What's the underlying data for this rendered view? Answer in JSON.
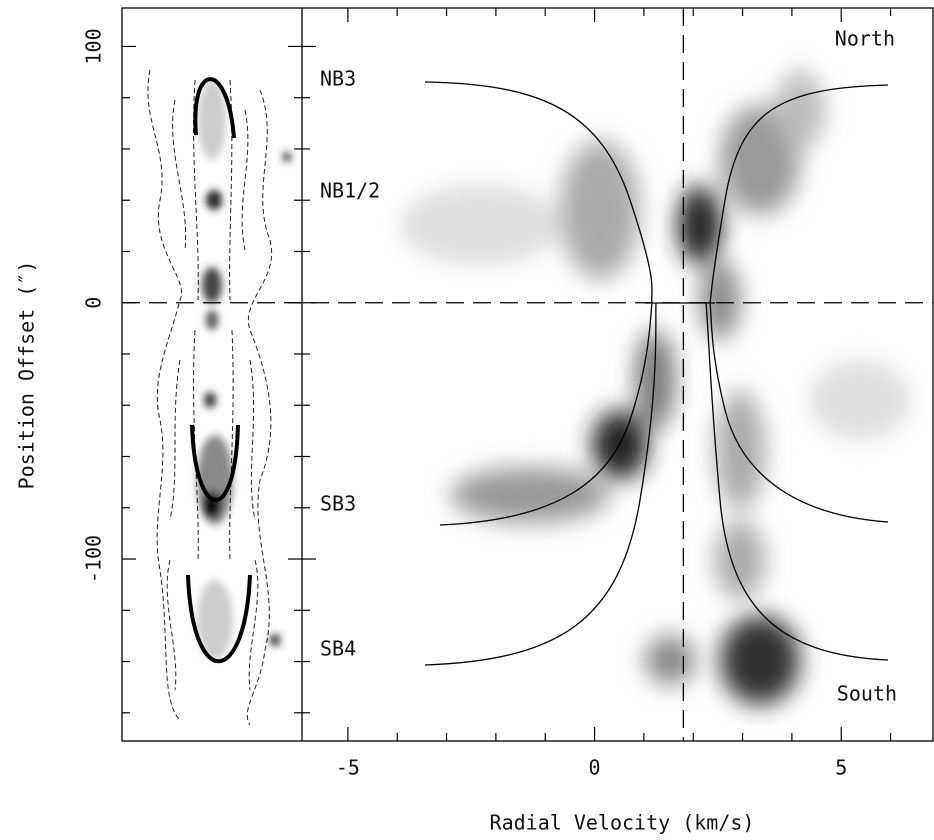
{
  "chart_data": {
    "type": "pv-diagram",
    "x_label": "Radial Velocity (km/s)",
    "y_label": "Position Offset (″)",
    "xlim": [
      -5.93,
      6.86
    ],
    "ylim": [
      -171,
      115
    ],
    "xticks": [
      -5,
      0,
      5
    ],
    "xminorticks": [
      -4,
      -3,
      -2,
      -1,
      1,
      2,
      3,
      4,
      6
    ],
    "yticks": [
      -100,
      0,
      100
    ],
    "yminorticks": [
      -160,
      -140,
      -120,
      -80,
      -60,
      -40,
      -20,
      20,
      40,
      60,
      80
    ],
    "reference_lines": {
      "x": 1.8,
      "y": 0
    },
    "annotations": [
      "NB3",
      "NB1/2",
      "SB3",
      "SB4",
      "North",
      "South"
    ]
  }
}
